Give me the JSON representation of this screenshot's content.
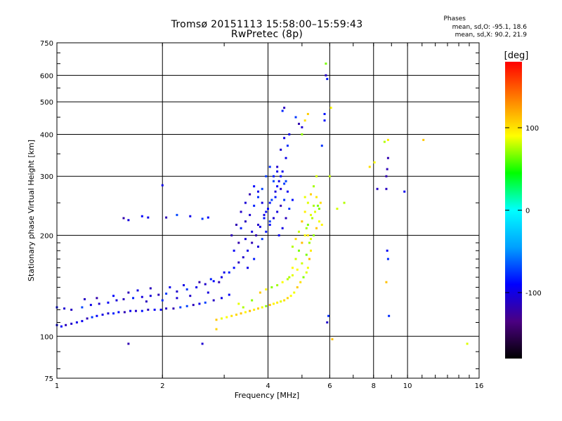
{
  "header": {
    "title": "Tromsø 20151113 15:58:00–15:59:43",
    "subtitle": "RwPretec (8p)",
    "stats_title": "Phases",
    "stats_o": "mean, sd,O: -95.1, 18.6",
    "stats_x": "mean, sd,X:  90.2, 21.9"
  },
  "chart_data": {
    "type": "scatter",
    "xlabel": "Frequency [MHz]",
    "ylabel": "Stationary phase Virtual Height [km]",
    "x_scale": "log",
    "y_scale": "log",
    "xlim": [
      1,
      16
    ],
    "ylim": [
      75,
      750
    ],
    "x_ticks": [
      1,
      2,
      4,
      6,
      8,
      10,
      16
    ],
    "y_ticks": [
      75,
      100,
      200,
      300,
      400,
      500,
      600,
      750
    ],
    "grid": true,
    "colorbar": {
      "label": "[deg]",
      "range": [
        -180,
        180
      ],
      "ticks": [
        100,
        0,
        -100
      ],
      "colors": [
        "#000000",
        "#4b0082",
        "#0000ff",
        "#00a0ff",
        "#00ffff",
        "#00ff00",
        "#ffff00",
        "#ff8000",
        "#ff0000"
      ]
    },
    "series": [
      {
        "mode": "O",
        "phase_deg": -95,
        "points": [
          [
            1.0,
            108
          ],
          [
            1.03,
            107
          ],
          [
            1.06,
            108
          ],
          [
            1.1,
            109
          ],
          [
            1.14,
            110
          ],
          [
            1.18,
            111
          ],
          [
            1.22,
            113
          ],
          [
            1.26,
            114
          ],
          [
            1.3,
            115
          ],
          [
            1.35,
            116
          ],
          [
            1.4,
            117
          ],
          [
            1.45,
            117
          ],
          [
            1.5,
            118
          ],
          [
            1.56,
            118
          ],
          [
            1.62,
            119
          ],
          [
            1.68,
            119
          ],
          [
            1.75,
            119
          ],
          [
            1.82,
            120
          ],
          [
            1.9,
            120
          ],
          [
            1.98,
            120
          ],
          [
            2.05,
            121
          ],
          [
            2.15,
            121
          ],
          [
            2.25,
            122
          ],
          [
            2.35,
            123
          ],
          [
            2.45,
            124
          ],
          [
            2.55,
            125
          ],
          [
            2.65,
            126
          ],
          [
            2.8,
            128
          ],
          [
            2.95,
            130
          ],
          [
            3.1,
            133
          ],
          [
            1.0,
            122
          ],
          [
            1.05,
            121
          ],
          [
            1.1,
            120
          ],
          [
            1.18,
            122
          ],
          [
            1.25,
            124
          ],
          [
            1.32,
            125
          ],
          [
            1.4,
            126
          ],
          [
            1.48,
            128
          ],
          [
            1.55,
            129
          ],
          [
            1.65,
            130
          ],
          [
            1.75,
            131
          ],
          [
            1.85,
            132
          ],
          [
            1.95,
            133
          ],
          [
            2.05,
            134
          ],
          [
            2.2,
            136
          ],
          [
            2.35,
            138
          ],
          [
            2.5,
            140
          ],
          [
            2.65,
            143
          ],
          [
            2.8,
            146
          ],
          [
            2.95,
            150
          ],
          [
            3.1,
            155
          ],
          [
            3.2,
            160
          ],
          [
            3.3,
            166
          ],
          [
            3.4,
            172
          ],
          [
            3.5,
            180
          ],
          [
            3.6,
            190
          ],
          [
            3.7,
            200
          ],
          [
            3.8,
            212
          ],
          [
            3.9,
            225
          ],
          [
            4.0,
            240
          ],
          [
            4.1,
            255
          ],
          [
            4.2,
            270
          ],
          [
            4.3,
            290
          ],
          [
            4.4,
            310
          ],
          [
            4.5,
            340
          ],
          [
            4.55,
            370
          ],
          [
            4.6,
            400
          ],
          [
            4.45,
            390
          ],
          [
            4.35,
            360
          ],
          [
            4.25,
            320
          ],
          [
            3.35,
            210
          ],
          [
            3.45,
            220
          ],
          [
            3.55,
            230
          ],
          [
            3.65,
            245
          ],
          [
            3.75,
            260
          ],
          [
            3.85,
            275
          ],
          [
            3.95,
            300
          ],
          [
            4.05,
            320
          ],
          [
            4.15,
            300
          ],
          [
            4.25,
            280
          ],
          [
            3.2,
            180
          ],
          [
            3.3,
            190
          ],
          [
            3.45,
            195
          ],
          [
            3.6,
            205
          ],
          [
            3.75,
            215
          ],
          [
            3.9,
            230
          ],
          [
            4.05,
            250
          ],
          [
            4.2,
            260
          ],
          [
            4.35,
            275
          ],
          [
            4.5,
            290
          ],
          [
            1.55,
            225
          ],
          [
            1.6,
            222
          ],
          [
            1.75,
            228
          ],
          [
            1.82,
            226
          ],
          [
            2.05,
            226
          ],
          [
            2.2,
            230
          ],
          [
            2.4,
            228
          ],
          [
            2.6,
            224
          ],
          [
            2.7,
            226
          ],
          [
            2.0,
            282
          ],
          [
            4.45,
            480
          ],
          [
            4.4,
            470
          ],
          [
            4.8,
            450
          ],
          [
            5.0,
            420
          ],
          [
            4.9,
            430
          ],
          [
            5.85,
            600
          ],
          [
            5.9,
            585
          ],
          [
            5.8,
            460
          ],
          [
            5.8,
            440
          ],
          [
            5.7,
            370
          ],
          [
            5.9,
            110
          ],
          [
            5.95,
            115
          ],
          [
            8.2,
            275
          ],
          [
            8.7,
            300
          ],
          [
            8.75,
            315
          ],
          [
            8.8,
            340
          ],
          [
            8.75,
            180
          ],
          [
            8.8,
            170
          ],
          [
            8.85,
            115
          ],
          [
            8.7,
            275
          ],
          [
            9.8,
            270
          ],
          [
            1.6,
            95
          ],
          [
            2.6,
            95
          ],
          [
            3.0,
            155
          ],
          [
            2.9,
            145
          ],
          [
            2.7,
            135
          ],
          [
            2.4,
            132
          ],
          [
            2.2,
            130
          ],
          [
            2.0,
            128
          ],
          [
            1.8,
            127
          ],
          [
            1.2,
            129
          ],
          [
            1.3,
            130
          ],
          [
            1.45,
            132
          ],
          [
            1.6,
            135
          ],
          [
            1.7,
            137
          ],
          [
            1.85,
            139
          ],
          [
            2.1,
            140
          ],
          [
            2.3,
            142
          ],
          [
            2.55,
            145
          ],
          [
            2.75,
            148
          ],
          [
            3.5,
            160
          ],
          [
            3.65,
            170
          ],
          [
            3.75,
            185
          ],
          [
            3.85,
            195
          ],
          [
            3.95,
            205
          ],
          [
            4.05,
            215
          ],
          [
            4.15,
            225
          ],
          [
            4.25,
            235
          ],
          [
            4.35,
            245
          ],
          [
            4.45,
            255
          ],
          [
            3.15,
            200
          ],
          [
            3.25,
            215
          ],
          [
            3.35,
            235
          ],
          [
            3.45,
            250
          ],
          [
            3.55,
            265
          ],
          [
            3.65,
            280
          ],
          [
            3.75,
            270
          ],
          [
            3.85,
            250
          ],
          [
            3.95,
            235
          ],
          [
            4.05,
            220
          ],
          [
            4.3,
            200
          ],
          [
            4.4,
            210
          ],
          [
            4.5,
            225
          ],
          [
            4.6,
            240
          ],
          [
            4.7,
            255
          ],
          [
            4.55,
            270
          ],
          [
            4.45,
            285
          ],
          [
            4.35,
            300
          ],
          [
            4.25,
            310
          ],
          [
            4.15,
            290
          ]
        ]
      },
      {
        "mode": "X",
        "phase_deg": 90,
        "points": [
          [
            2.85,
            112
          ],
          [
            2.95,
            113
          ],
          [
            3.05,
            114
          ],
          [
            3.15,
            115
          ],
          [
            3.25,
            116
          ],
          [
            3.35,
            117
          ],
          [
            3.45,
            118
          ],
          [
            3.55,
            119
          ],
          [
            3.65,
            120
          ],
          [
            3.75,
            121
          ],
          [
            3.85,
            122
          ],
          [
            3.95,
            123
          ],
          [
            4.05,
            124
          ],
          [
            4.15,
            125
          ],
          [
            4.25,
            126
          ],
          [
            4.35,
            127
          ],
          [
            4.45,
            128
          ],
          [
            4.55,
            130
          ],
          [
            4.65,
            132
          ],
          [
            4.75,
            135
          ],
          [
            4.85,
            140
          ],
          [
            4.95,
            145
          ],
          [
            5.05,
            150
          ],
          [
            5.15,
            155
          ],
          [
            5.2,
            160
          ],
          [
            5.25,
            170
          ],
          [
            5.3,
            180
          ],
          [
            5.25,
            190
          ],
          [
            5.2,
            200
          ],
          [
            5.15,
            210
          ],
          [
            4.6,
            150
          ],
          [
            4.7,
            160
          ],
          [
            4.8,
            170
          ],
          [
            4.9,
            180
          ],
          [
            5.0,
            190
          ],
          [
            5.1,
            200
          ],
          [
            5.2,
            215
          ],
          [
            5.3,
            230
          ],
          [
            5.4,
            245
          ],
          [
            5.5,
            260
          ],
          [
            4.7,
            185
          ],
          [
            4.8,
            195
          ],
          [
            4.9,
            205
          ],
          [
            5.0,
            220
          ],
          [
            5.1,
            235
          ],
          [
            5.2,
            250
          ],
          [
            5.3,
            265
          ],
          [
            5.4,
            280
          ],
          [
            5.5,
            300
          ],
          [
            5.1,
            260
          ],
          [
            3.8,
            135
          ],
          [
            3.95,
            138
          ],
          [
            4.1,
            140
          ],
          [
            4.25,
            142
          ],
          [
            4.4,
            145
          ],
          [
            4.55,
            148
          ],
          [
            4.7,
            152
          ],
          [
            4.85,
            158
          ],
          [
            5.0,
            165
          ],
          [
            5.15,
            175
          ],
          [
            5.6,
            240
          ],
          [
            5.65,
            250
          ],
          [
            5.6,
            220
          ],
          [
            5.7,
            215
          ],
          [
            5.5,
            210
          ],
          [
            5.4,
            200
          ],
          [
            5.3,
            195
          ],
          [
            5.35,
            225
          ],
          [
            5.45,
            235
          ],
          [
            5.55,
            245
          ],
          [
            5.0,
            400
          ],
          [
            5.1,
            440
          ],
          [
            5.2,
            460
          ],
          [
            5.85,
            650
          ],
          [
            6.05,
            480
          ],
          [
            6.0,
            300
          ],
          [
            6.3,
            240
          ],
          [
            6.6,
            250
          ],
          [
            7.8,
            320
          ],
          [
            8.05,
            330
          ],
          [
            8.6,
            380
          ],
          [
            8.8,
            385
          ],
          [
            11.1,
            385
          ],
          [
            8.7,
            145
          ],
          [
            14.8,
            95
          ],
          [
            6.1,
            98
          ],
          [
            2.85,
            105
          ],
          [
            3.3,
            125
          ],
          [
            3.6,
            128
          ],
          [
            3.4,
            122
          ]
        ]
      }
    ]
  }
}
